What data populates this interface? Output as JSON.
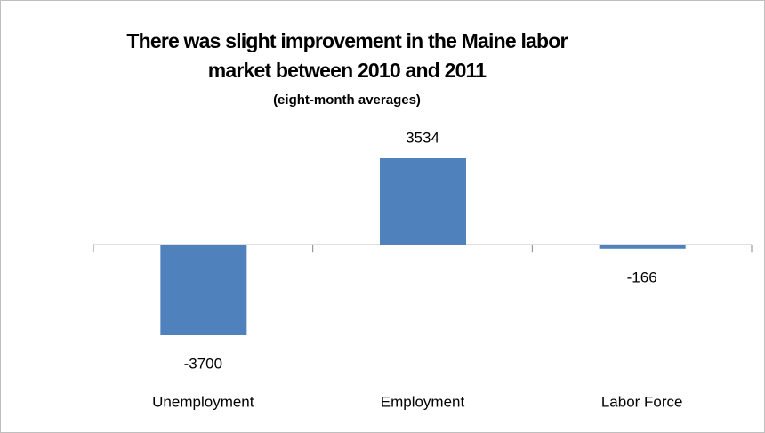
{
  "chart_data": {
    "type": "bar",
    "title": "There was slight improvement in the Maine labor market between 2010 and 2011",
    "subtitle": "(eight-month averages)",
    "categories": [
      "Unemployment",
      "Employment",
      "Labor Force"
    ],
    "values": [
      -3700,
      3534,
      -166
    ],
    "color": "#4f81bd"
  }
}
